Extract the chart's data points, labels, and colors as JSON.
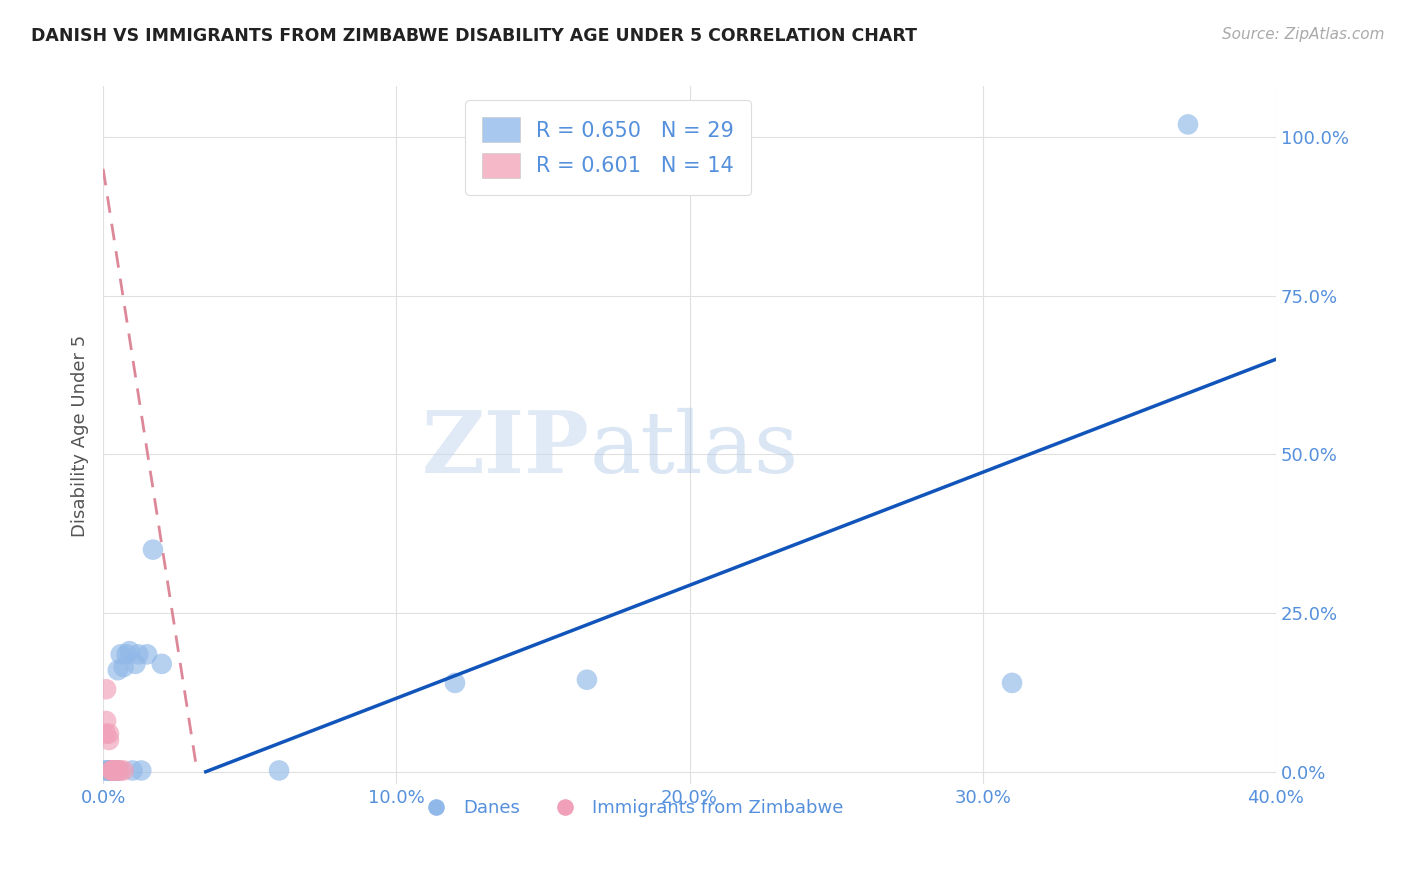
{
  "title": "DANISH VS IMMIGRANTS FROM ZIMBABWE DISABILITY AGE UNDER 5 CORRELATION CHART",
  "source": "Source: ZipAtlas.com",
  "ylabel": "Disability Age Under 5",
  "watermark_part1": "ZIP",
  "watermark_part2": "atlas",
  "blue_R": 0.65,
  "blue_N": 29,
  "pink_R": 0.601,
  "pink_N": 14,
  "blue_label": "Danes",
  "pink_label": "Immigrants from Zimbabwe",
  "xlim": [
    0.0,
    0.4
  ],
  "ylim": [
    -0.02,
    1.08
  ],
  "xticks": [
    0.0,
    0.1,
    0.2,
    0.3,
    0.4
  ],
  "yticks": [
    0.0,
    0.25,
    0.5,
    0.75,
    1.0
  ],
  "blue_scatter_x": [
    0.001,
    0.001,
    0.002,
    0.002,
    0.002,
    0.003,
    0.003,
    0.003,
    0.004,
    0.004,
    0.005,
    0.005,
    0.005,
    0.006,
    0.007,
    0.008,
    0.009,
    0.01,
    0.011,
    0.012,
    0.013,
    0.015,
    0.017,
    0.02,
    0.06,
    0.12,
    0.165,
    0.31,
    0.37
  ],
  "blue_scatter_y": [
    0.002,
    0.002,
    0.002,
    0.002,
    0.002,
    0.002,
    0.002,
    0.002,
    0.002,
    0.002,
    0.002,
    0.002,
    0.16,
    0.185,
    0.165,
    0.185,
    0.19,
    0.002,
    0.17,
    0.185,
    0.002,
    0.185,
    0.35,
    0.17,
    0.002,
    0.14,
    0.145,
    0.14,
    1.02
  ],
  "pink_scatter_x": [
    0.001,
    0.001,
    0.001,
    0.002,
    0.002,
    0.003,
    0.003,
    0.003,
    0.004,
    0.004,
    0.005,
    0.005,
    0.006,
    0.007
  ],
  "pink_scatter_y": [
    0.13,
    0.08,
    0.06,
    0.05,
    0.06,
    0.002,
    0.002,
    0.002,
    0.002,
    0.002,
    0.002,
    0.002,
    0.002,
    0.002
  ],
  "blue_line_x": [
    0.035,
    0.4
  ],
  "blue_line_y": [
    0.0,
    0.65
  ],
  "pink_line_x": [
    0.0,
    0.032
  ],
  "pink_line_y": [
    0.95,
    0.002
  ],
  "blue_color": "#a8c8f0",
  "pink_color": "#f5b8c8",
  "blue_scatter_color": "#90b8e8",
  "pink_scatter_color": "#f0a0b8",
  "blue_line_color": "#1155bb",
  "pink_line_color": "#dd8898",
  "title_color": "#222222",
  "axis_label_color": "#5590dd",
  "ylabel_color": "#555555",
  "background_color": "#ffffff",
  "grid_color": "#e0e0e0",
  "source_color": "#aaaaaa"
}
